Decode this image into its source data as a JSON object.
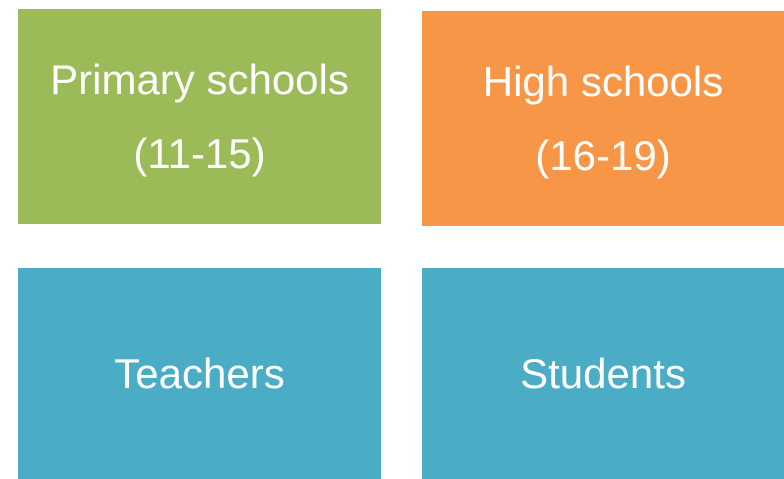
{
  "boxes": [
    {
      "title": "Primary schools",
      "subtitle": "(11-15)"
    },
    {
      "title": "High schools",
      "subtitle": "(16-19)"
    },
    {
      "title": "Teachers"
    },
    {
      "title": "Students"
    }
  ]
}
